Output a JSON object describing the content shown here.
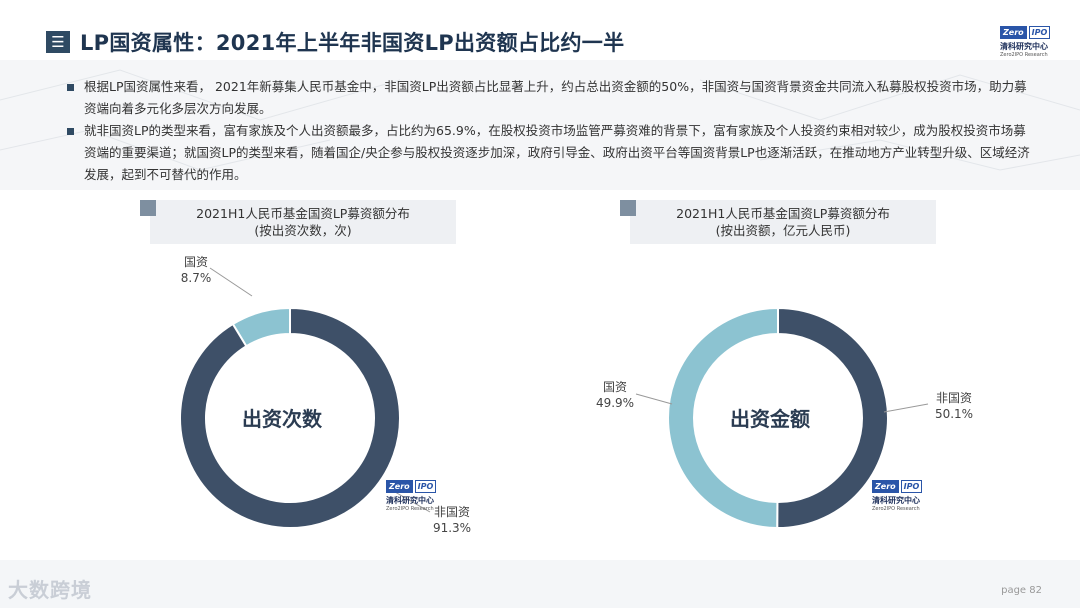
{
  "header": {
    "menu_icon": "menu-icon",
    "title": "LP国资属性：2021年上半年非国资LP出资额占比约一半",
    "logo": {
      "box_left": "Zero",
      "box_right": "IPO",
      "cn": "清科研究中心",
      "en": "Zero2IPO Research"
    }
  },
  "bullets": [
    "根据LP国资属性来看， 2021年新募集人民币基金中，非国资LP出资额占比显著上升，约占总出资金额的50%，非国资与国资背景资金共同流入私募股权投资市场，助力募资端向着多元化多层次方向发展。",
    "就非国资LP的类型来看，富有家族及个人出资额最多，占比约为65.9%，在股权投资市场监管严募资难的背景下，富有家族及个人投资约束相对较少，成为股权投资市场募资端的重要渠道；就国资LP的类型来看，随着国企/央企参与股权投资逐步加深，政府引导金、政府出资平台等国资背景LP也逐渐活跃，在推动地方产业转型升级、区域经济发展，起到不可替代的作用。"
  ],
  "chart_data": [
    {
      "type": "pie",
      "title": "2021H1人民币基金国资LP募资额分布",
      "subtitle": "(按出资次数，次)",
      "center_label": "出资次数",
      "slices": [
        {
          "label": "国资",
          "value": 8.7,
          "display": "8.7%",
          "color": "#8cc3d1"
        },
        {
          "label": "非国资",
          "value": 91.3,
          "display": "91.3%",
          "color": "#3e5068"
        }
      ]
    },
    {
      "type": "pie",
      "title": "2021H1人民币基金国资LP募资额分布",
      "subtitle": "(按出资额，亿元人民币)",
      "center_label": "出资金额",
      "slices": [
        {
          "label": "国资",
          "value": 49.9,
          "display": "49.9%",
          "color": "#8cc3d1"
        },
        {
          "label": "非国资",
          "value": 50.1,
          "display": "50.1%",
          "color": "#3e5068"
        }
      ]
    }
  ],
  "footer": {
    "page_label": "page  82",
    "watermark": "大数跨境"
  }
}
